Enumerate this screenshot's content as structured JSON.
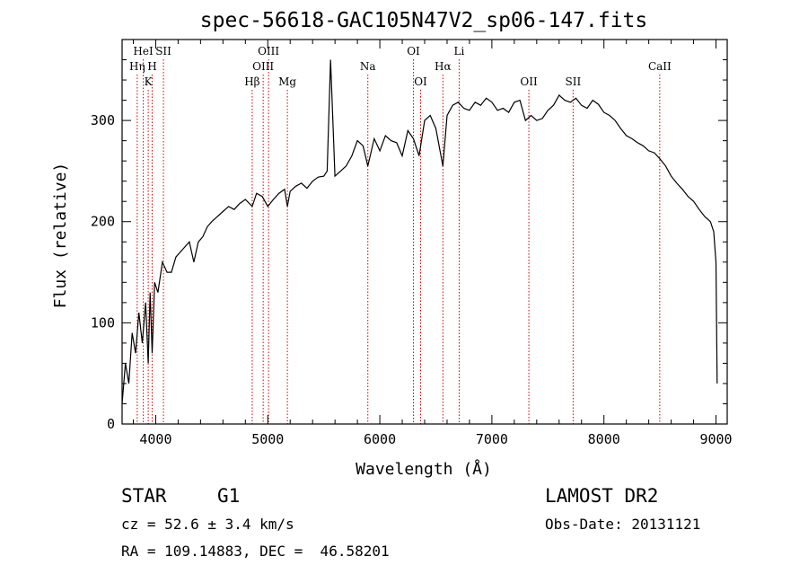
{
  "chart_data": {
    "type": "line",
    "title": "spec-56618-GAC105N47V2_sp06-147.fits",
    "xlabel": "Wavelength (Å)",
    "ylabel": "Flux (relative)",
    "xlim": [
      3700,
      9100
    ],
    "ylim": [
      0,
      380
    ],
    "xticks": [
      4000,
      5000,
      6000,
      7000,
      8000,
      9000
    ],
    "yticks": [
      0,
      100,
      200,
      300
    ],
    "grid": false,
    "series": [
      {
        "x": [
          3700,
          3730,
          3760,
          3790,
          3820,
          3850,
          3880,
          3910,
          3933,
          3950,
          3968,
          3990,
          4020,
          4060,
          4101,
          4140,
          4180,
          4220,
          4260,
          4300,
          4340,
          4380,
          4420,
          4460,
          4500,
          4550,
          4600,
          4650,
          4700,
          4750,
          4800,
          4861,
          4900,
          4950,
          5000,
          5050,
          5100,
          5150,
          5175,
          5200,
          5250,
          5300,
          5350,
          5400,
          5450,
          5500,
          5530,
          5560,
          5600,
          5650,
          5700,
          5750,
          5800,
          5850,
          5893,
          5950,
          6000,
          6050,
          6100,
          6150,
          6200,
          6250,
          6300,
          6350,
          6400,
          6450,
          6500,
          6563,
          6600,
          6650,
          6700,
          6750,
          6800,
          6850,
          6900,
          6950,
          7000,
          7050,
          7100,
          7150,
          7200,
          7250,
          7300,
          7350,
          7400,
          7450,
          7500,
          7550,
          7600,
          7650,
          7700,
          7750,
          7800,
          7850,
          7900,
          7950,
          8000,
          8050,
          8100,
          8150,
          8200,
          8250,
          8300,
          8350,
          8400,
          8450,
          8500,
          8550,
          8600,
          8650,
          8700,
          8750,
          8800,
          8850,
          8900,
          8950,
          8980,
          9000,
          9010
        ],
        "y": [
          20,
          60,
          40,
          90,
          70,
          110,
          80,
          120,
          60,
          130,
          70,
          140,
          130,
          160,
          150,
          150,
          165,
          170,
          175,
          180,
          160,
          180,
          185,
          195,
          200,
          205,
          210,
          215,
          212,
          218,
          222,
          215,
          228,
          225,
          215,
          222,
          228,
          232,
          215,
          230,
          235,
          238,
          233,
          240,
          244,
          245,
          250,
          360,
          245,
          250,
          255,
          265,
          280,
          275,
          255,
          282,
          270,
          285,
          280,
          278,
          265,
          290,
          282,
          265,
          300,
          305,
          292,
          255,
          305,
          315,
          318,
          312,
          310,
          318,
          315,
          322,
          318,
          310,
          312,
          308,
          318,
          320,
          300,
          305,
          300,
          302,
          310,
          315,
          325,
          320,
          318,
          322,
          315,
          312,
          320,
          316,
          308,
          305,
          300,
          292,
          285,
          282,
          278,
          275,
          270,
          268,
          262,
          255,
          245,
          238,
          232,
          225,
          220,
          212,
          205,
          200,
          190,
          160,
          40
        ]
      }
    ],
    "line_labels": [
      {
        "text": "HeI",
        "x": 3889,
        "row": 1,
        "color": "#cc0000"
      },
      {
        "text": "SII",
        "x": 4069,
        "row": 1,
        "color": "#cc0000"
      },
      {
        "text": "Hη",
        "x": 3835,
        "row": 2,
        "color": "#cc0000"
      },
      {
        "text": "H",
        "x": 3968,
        "row": 2,
        "color": "#cc0000"
      },
      {
        "text": "K",
        "x": 3933,
        "row": 3,
        "color": "#cc0000"
      },
      {
        "text": "OIII",
        "x": 5007,
        "row": 1,
        "color": "#cc0000"
      },
      {
        "text": "OIII",
        "x": 4959,
        "row": 2,
        "color": "#cc0000"
      },
      {
        "text": "Hβ",
        "x": 4861,
        "row": 3,
        "color": "#cc0000"
      },
      {
        "text": "Mg",
        "x": 5175,
        "row": 3,
        "color": "#cc0000"
      },
      {
        "text": "Na",
        "x": 5893,
        "row": 2,
        "color": "#cc0000"
      },
      {
        "text": "OI",
        "x": 6300,
        "row": 1,
        "color": "#cc0000"
      },
      {
        "text": "OI",
        "x": 6364,
        "row": 3,
        "color": "#cc0000"
      },
      {
        "text": "Hα",
        "x": 6563,
        "row": 2,
        "color": "#cc0000"
      },
      {
        "text": "Li",
        "x": 6708,
        "row": 1,
        "color": "#cc0000"
      },
      {
        "text": "OII",
        "x": 7330,
        "row": 3,
        "color": "#cc0000"
      },
      {
        "text": "SII",
        "x": 7725,
        "row": 3,
        "color": "#cc0000"
      },
      {
        "text": "CaII",
        "x": 8498,
        "row": 2,
        "color": "#cc0000"
      }
    ]
  },
  "info": {
    "object_class": "STAR",
    "subclass": "G1",
    "survey": "LAMOST DR2",
    "cz": "cz = 52.6 ± 3.4 km/s",
    "obs_date": "Obs-Date: 20131121",
    "coords": "RA = 109.14883, DEC =  46.58201"
  }
}
